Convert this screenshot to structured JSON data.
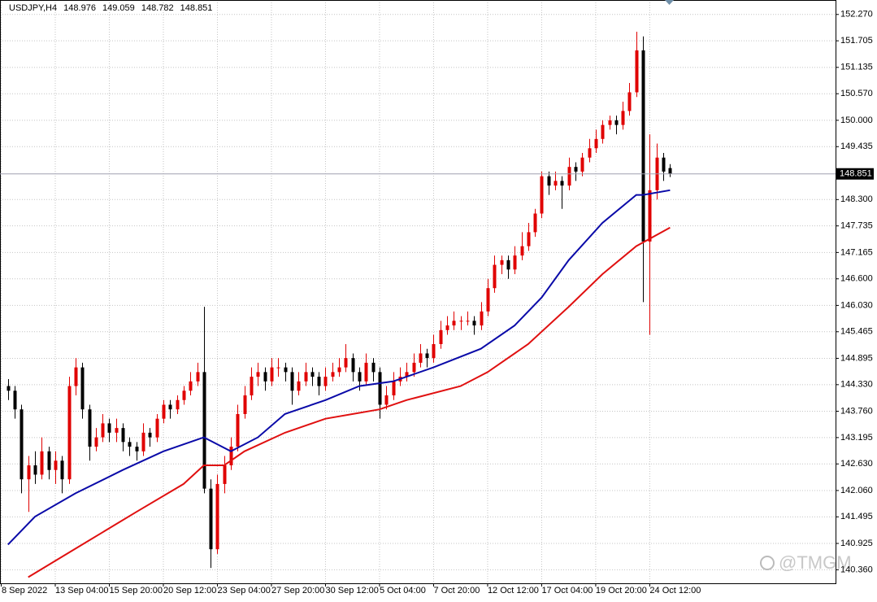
{
  "chart_data": {
    "type": "candlestick",
    "symbol": "USDJPY,H4",
    "watermark": "@TMGM",
    "up_color": "#e00000",
    "down_color": "#000000",
    "grid": true,
    "xlim": [
      -1.18,
      122.5
    ],
    "ylim": [
      140.07,
      152.58
    ],
    "xticks": [
      {
        "value": -1,
        "label": "8 Sep 2022"
      },
      {
        "value": 7,
        "label": "13 Sep 04:00"
      },
      {
        "value": 15,
        "label": "15 Sep 20:00"
      },
      {
        "value": 23,
        "label": "20 Sep 12:00"
      },
      {
        "value": 31,
        "label": "23 Sep 04:00"
      },
      {
        "value": 39,
        "label": "27 Sep 20:00"
      },
      {
        "value": 47,
        "label": "30 Sep 12:00"
      },
      {
        "value": 55,
        "label": "5 Oct 04:00"
      },
      {
        "value": 63,
        "label": "7 Oct 20:00"
      },
      {
        "value": 71,
        "label": "12 Oct 12:00"
      },
      {
        "value": 79,
        "label": "17 Oct 04:00"
      },
      {
        "value": 87,
        "label": "19 Oct 20:00"
      },
      {
        "value": 95,
        "label": "24 Oct 12:00"
      }
    ],
    "yticks": [
      {
        "value": 152.27,
        "label": "152.270"
      },
      {
        "value": 151.705,
        "label": "151.705"
      },
      {
        "value": 151.135,
        "label": "151.135"
      },
      {
        "value": 150.57,
        "label": "150.570"
      },
      {
        "value": 150,
        "label": "150.000"
      },
      {
        "value": 149.435,
        "label": "149.435"
      },
      {
        "value": 148.3,
        "label": "148.300"
      },
      {
        "value": 147.735,
        "label": "147.735"
      },
      {
        "value": 147.165,
        "label": "147.165"
      },
      {
        "value": 146.6,
        "label": "146.600"
      },
      {
        "value": 146.03,
        "label": "146.030"
      },
      {
        "value": 145.465,
        "label": "145.465"
      },
      {
        "value": 144.895,
        "label": "144.895"
      },
      {
        "value": 144.33,
        "label": "144.330"
      },
      {
        "value": 143.76,
        "label": "143.760"
      },
      {
        "value": 143.195,
        "label": "143.195"
      },
      {
        "value": 142.63,
        "label": "142.630"
      },
      {
        "value": 142.06,
        "label": "142.060"
      },
      {
        "value": 141.495,
        "label": "141.495"
      },
      {
        "value": 140.925,
        "label": "140.925"
      },
      {
        "value": 140.36,
        "label": "140.360"
      }
    ],
    "candles": [
      [
        144.3,
        144.45,
        144.0,
        144.2
      ],
      [
        144.2,
        144.3,
        143.6,
        143.8
      ],
      [
        143.8,
        143.9,
        142.0,
        142.3
      ],
      [
        142.3,
        142.8,
        141.6,
        142.6
      ],
      [
        142.6,
        142.9,
        142.2,
        142.4
      ],
      [
        142.4,
        143.2,
        142.3,
        142.9
      ],
      [
        142.9,
        143.0,
        142.3,
        142.5
      ],
      [
        142.5,
        142.9,
        142.2,
        142.7
      ],
      [
        142.7,
        142.8,
        142.0,
        142.3
      ],
      [
        142.3,
        144.5,
        142.2,
        144.3
      ],
      [
        144.3,
        144.9,
        144.1,
        144.7
      ],
      [
        144.7,
        144.8,
        143.6,
        143.8
      ],
      [
        143.8,
        143.9,
        142.7,
        143.0
      ],
      [
        143.0,
        143.4,
        142.9,
        143.2
      ],
      [
        143.2,
        143.7,
        143.1,
        143.5
      ],
      [
        143.5,
        143.6,
        143.1,
        143.3
      ],
      [
        143.3,
        143.6,
        143.1,
        143.4
      ],
      [
        143.4,
        143.5,
        142.9,
        143.1
      ],
      [
        143.1,
        143.2,
        142.8,
        143.0
      ],
      [
        143.0,
        143.1,
        142.7,
        142.9
      ],
      [
        142.9,
        143.5,
        142.8,
        143.3
      ],
      [
        143.3,
        143.4,
        143.0,
        143.2
      ],
      [
        143.2,
        143.7,
        143.1,
        143.6
      ],
      [
        143.6,
        144.0,
        143.5,
        143.9
      ],
      [
        143.9,
        144.0,
        143.6,
        143.8
      ],
      [
        143.8,
        144.1,
        143.7,
        144.0
      ],
      [
        144.0,
        144.3,
        143.9,
        144.2
      ],
      [
        144.2,
        144.6,
        144.1,
        144.4
      ],
      [
        144.4,
        144.8,
        144.3,
        144.6
      ],
      [
        144.6,
        146.0,
        142.0,
        142.1
      ],
      [
        142.1,
        142.3,
        140.4,
        140.8
      ],
      [
        140.8,
        142.4,
        140.7,
        142.2
      ],
      [
        142.2,
        142.8,
        142.0,
        142.6
      ],
      [
        142.6,
        143.2,
        142.5,
        143.0
      ],
      [
        143.0,
        143.9,
        142.9,
        143.7
      ],
      [
        143.7,
        144.3,
        143.6,
        144.1
      ],
      [
        144.1,
        144.7,
        144.0,
        144.5
      ],
      [
        144.5,
        144.8,
        144.3,
        144.6
      ],
      [
        144.6,
        144.7,
        144.2,
        144.4
      ],
      [
        144.4,
        144.9,
        144.3,
        144.7
      ],
      [
        144.7,
        144.9,
        144.5,
        144.7
      ],
      [
        144.7,
        144.8,
        144.4,
        144.6
      ],
      [
        144.6,
        144.7,
        143.9,
        144.2
      ],
      [
        144.2,
        144.6,
        144.1,
        144.4
      ],
      [
        144.4,
        144.8,
        144.3,
        144.6
      ],
      [
        144.6,
        144.7,
        144.3,
        144.5
      ],
      [
        144.5,
        144.6,
        144.1,
        144.3
      ],
      [
        144.3,
        144.7,
        144.2,
        144.5
      ],
      [
        144.5,
        144.8,
        144.4,
        144.6
      ],
      [
        144.6,
        144.9,
        144.5,
        144.7
      ],
      [
        144.7,
        145.2,
        144.6,
        144.9
      ],
      [
        144.9,
        145.0,
        144.4,
        144.6
      ],
      [
        144.6,
        144.7,
        144.2,
        144.4
      ],
      [
        144.4,
        145.0,
        144.3,
        144.8
      ],
      [
        144.8,
        144.9,
        144.4,
        144.6
      ],
      [
        144.6,
        144.7,
        143.6,
        143.9
      ],
      [
        143.9,
        144.3,
        143.8,
        144.1
      ],
      [
        144.1,
        144.6,
        144.0,
        144.4
      ],
      [
        144.4,
        144.7,
        144.3,
        144.5
      ],
      [
        144.5,
        144.8,
        144.4,
        144.6
      ],
      [
        144.6,
        145.0,
        144.5,
        144.8
      ],
      [
        144.8,
        145.2,
        144.7,
        145.0
      ],
      [
        145.0,
        145.1,
        144.7,
        144.9
      ],
      [
        144.9,
        145.4,
        144.8,
        145.2
      ],
      [
        145.2,
        145.7,
        145.1,
        145.5
      ],
      [
        145.5,
        145.8,
        145.4,
        145.6
      ],
      [
        145.6,
        145.9,
        145.5,
        145.7
      ],
      [
        145.7,
        145.8,
        145.5,
        145.7
      ],
      [
        145.7,
        145.9,
        145.6,
        145.7
      ],
      [
        145.7,
        145.8,
        145.4,
        145.6
      ],
      [
        145.6,
        146.1,
        145.5,
        145.9
      ],
      [
        145.9,
        146.6,
        145.8,
        146.4
      ],
      [
        146.4,
        147.1,
        146.3,
        146.9
      ],
      [
        146.9,
        147.1,
        146.7,
        147.0
      ],
      [
        147.0,
        147.1,
        146.6,
        146.8
      ],
      [
        146.8,
        147.3,
        146.7,
        147.1
      ],
      [
        147.1,
        147.6,
        147.0,
        147.3
      ],
      [
        147.3,
        147.8,
        147.2,
        147.6
      ],
      [
        147.6,
        148.1,
        147.5,
        148.0
      ],
      [
        148.0,
        148.9,
        147.9,
        148.8
      ],
      [
        148.8,
        148.9,
        148.4,
        148.6
      ],
      [
        148.6,
        148.9,
        148.5,
        148.7
      ],
      [
        148.7,
        148.8,
        148.1,
        148.6
      ],
      [
        148.6,
        149.2,
        148.5,
        149.0
      ],
      [
        149.0,
        149.1,
        148.7,
        148.9
      ],
      [
        148.9,
        149.3,
        148.8,
        149.2
      ],
      [
        149.2,
        149.6,
        149.1,
        149.4
      ],
      [
        149.4,
        149.8,
        149.3,
        149.6
      ],
      [
        149.6,
        150.0,
        149.5,
        149.9
      ],
      [
        149.9,
        150.1,
        149.8,
        150.0
      ],
      [
        150.0,
        150.1,
        149.7,
        149.9
      ],
      [
        149.9,
        150.4,
        149.8,
        150.2
      ],
      [
        150.2,
        150.8,
        150.1,
        150.6
      ],
      [
        150.6,
        151.9,
        150.5,
        151.5
      ],
      [
        151.5,
        151.8,
        146.1,
        147.4
      ],
      [
        147.4,
        149.7,
        145.4,
        148.5
      ],
      [
        148.5,
        149.5,
        148.3,
        149.2
      ],
      [
        149.2,
        149.3,
        148.7,
        148.9
      ],
      [
        148.976,
        149.059,
        148.782,
        148.851
      ]
    ],
    "series": [
      {
        "color": "#0a0aa8",
        "x": [
          0,
          4,
          10,
          17,
          23,
          29,
          33,
          37,
          41,
          47,
          52,
          57,
          63,
          70,
          75,
          79,
          83,
          88,
          93,
          94,
          98
        ],
        "values": [
          140.9,
          141.5,
          142.0,
          142.5,
          142.9,
          143.2,
          142.9,
          143.2,
          143.7,
          144.0,
          144.3,
          144.4,
          144.7,
          145.1,
          145.6,
          146.2,
          147.0,
          147.8,
          148.4,
          148.4,
          148.5
        ]
      },
      {
        "color": "#e01010",
        "x": [
          3,
          11,
          19,
          26,
          29,
          32,
          35,
          41,
          47,
          55,
          59,
          67,
          71,
          77,
          83,
          88,
          93,
          98
        ],
        "values": [
          140.2,
          140.9,
          141.6,
          142.2,
          142.6,
          142.6,
          142.9,
          143.3,
          143.6,
          143.8,
          144.0,
          144.3,
          144.6,
          145.2,
          146.0,
          146.7,
          147.3,
          147.7
        ]
      }
    ]
  }
}
